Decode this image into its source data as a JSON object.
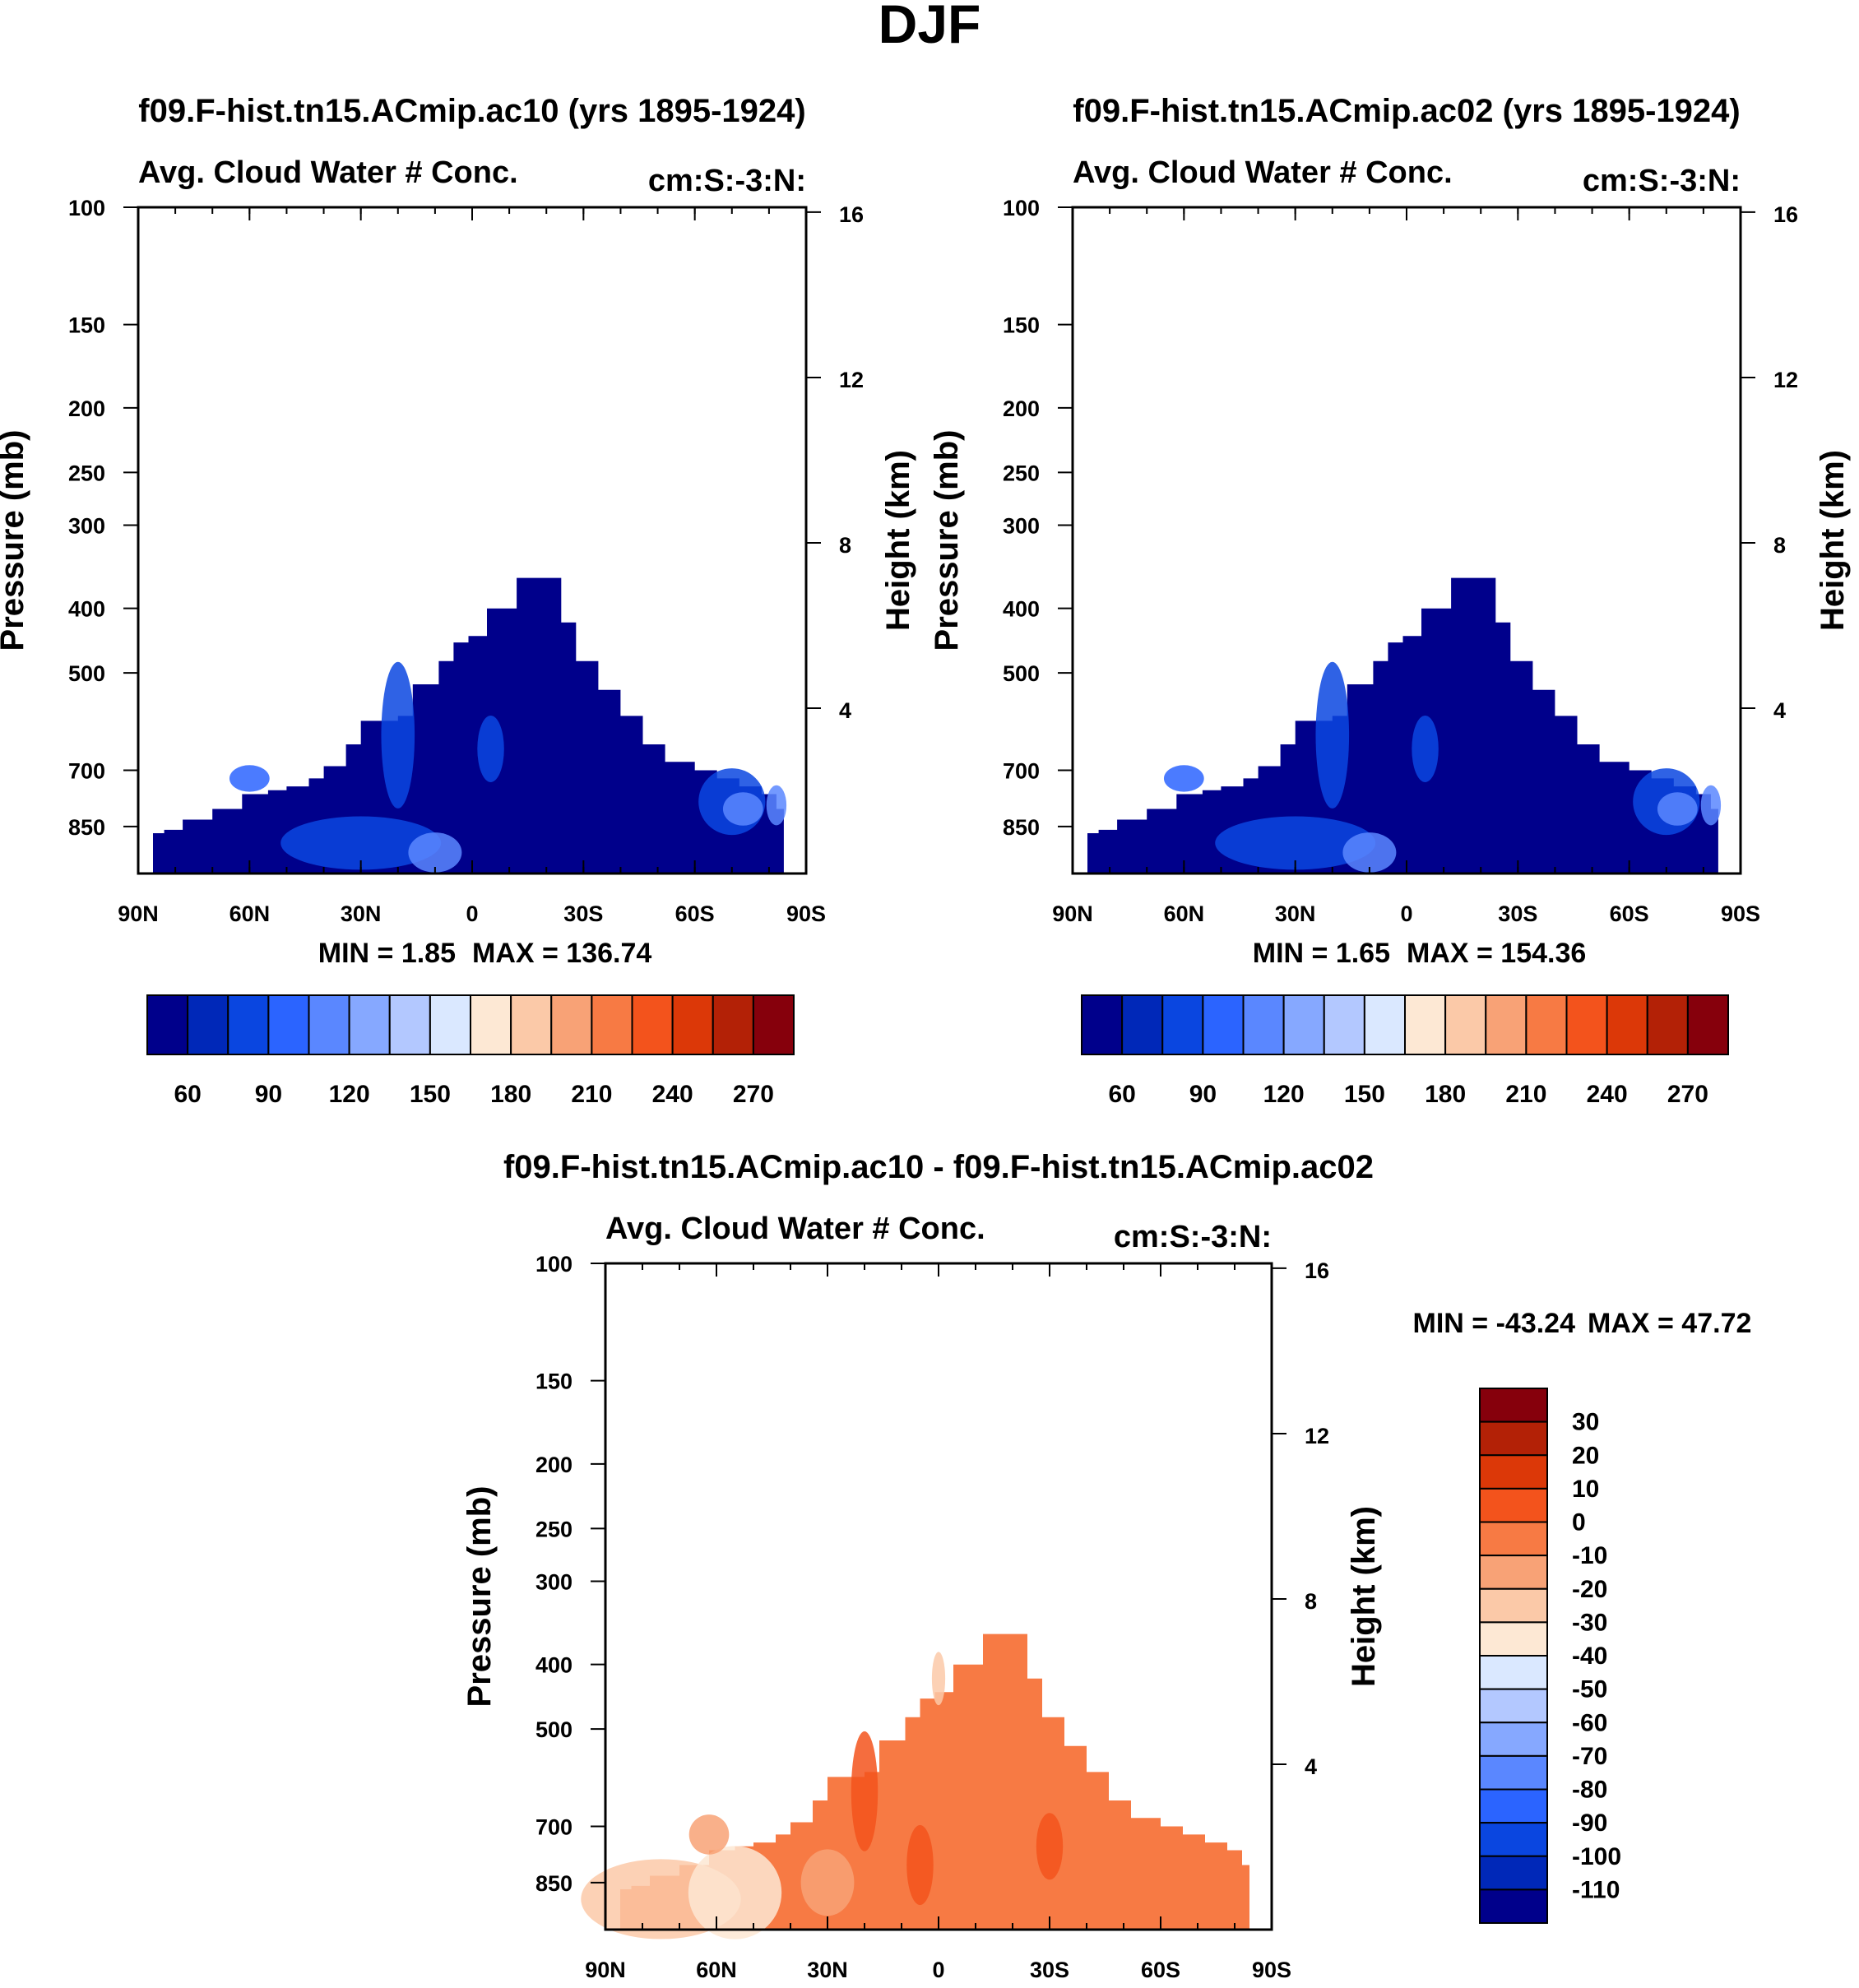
{
  "page": {
    "title": "DJF"
  },
  "chart_data": [
    {
      "type": "heatmap",
      "title": "f09.F-hist.tn15.ACmip.ac10 (yrs 1895-1924)",
      "subtitle_left": "Avg. Cloud Water # Conc.",
      "subtitle_right": "cm:S:-3:N:",
      "xlabel": "",
      "ylabel": "Pressure (mb)",
      "ylabel_right": "Height (km)",
      "x_ticks": [
        "90N",
        "60N",
        "30N",
        "0",
        "30S",
        "60S",
        "90S"
      ],
      "xlim": [
        90,
        -90
      ],
      "y_ticks": [
        100,
        150,
        200,
        250,
        300,
        400,
        500,
        700,
        850
      ],
      "ylim": [
        100,
        1000
      ],
      "y_right_ticks": [
        4,
        8,
        12,
        16
      ],
      "min_text": "MIN =   1.85",
      "max_text": "MAX = 136.74",
      "colorbar_labels": [
        "60",
        "90",
        "120",
        "150",
        "180",
        "210",
        "240",
        "270"
      ],
      "colorbar_colors": [
        "#00008b",
        "#0028b8",
        "#0a46e0",
        "#2b64ff",
        "#5a87ff",
        "#86a8ff",
        "#b3c8ff",
        "#dae8ff",
        "#fde8d4",
        "#fbc9a8",
        "#f8a276",
        "#f77a44",
        "#f3531c",
        "#dc3808",
        "#b32106",
        "#86000c"
      ],
      "field_range": "approx 1.85–136.74, mostly deep blue with lighter blue patches near surface and midlatitudes"
    },
    {
      "type": "heatmap",
      "title": "f09.F-hist.tn15.ACmip.ac02 (yrs 1895-1924)",
      "subtitle_left": "Avg. Cloud Water # Conc.",
      "subtitle_right": "cm:S:-3:N:",
      "xlabel": "",
      "ylabel": "Pressure (mb)",
      "ylabel_right": "Height (km)",
      "x_ticks": [
        "90N",
        "60N",
        "30N",
        "0",
        "30S",
        "60S",
        "90S"
      ],
      "xlim": [
        90,
        -90
      ],
      "y_ticks": [
        100,
        150,
        200,
        250,
        300,
        400,
        500,
        700,
        850
      ],
      "ylim": [
        100,
        1000
      ],
      "y_right_ticks": [
        4,
        8,
        12,
        16
      ],
      "min_text": "MIN =   1.65",
      "max_text": "MAX = 154.36",
      "colorbar_labels": [
        "60",
        "90",
        "120",
        "150",
        "180",
        "210",
        "240",
        "270"
      ],
      "colorbar_colors": [
        "#00008b",
        "#0028b8",
        "#0a46e0",
        "#2b64ff",
        "#5a87ff",
        "#86a8ff",
        "#b3c8ff",
        "#dae8ff",
        "#fde8d4",
        "#fbc9a8",
        "#f8a276",
        "#f77a44",
        "#f3531c",
        "#dc3808",
        "#b32106",
        "#86000c"
      ],
      "field_range": "approx 1.65–154.36, mostly deep blue with lighter blue patches near surface in NH"
    },
    {
      "type": "heatmap",
      "title": "f09.F-hist.tn15.ACmip.ac10 - f09.F-hist.tn15.ACmip.ac02",
      "subtitle_left": "Avg. Cloud Water # Conc.",
      "subtitle_right": "cm:S:-3:N:",
      "xlabel": "",
      "ylabel": "Pressure (mb)",
      "ylabel_right": "Height (km)",
      "x_ticks": [
        "90N",
        "60N",
        "30N",
        "0",
        "30S",
        "60S",
        "90S"
      ],
      "xlim": [
        90,
        -90
      ],
      "y_ticks": [
        100,
        150,
        200,
        250,
        300,
        400,
        500,
        700,
        850
      ],
      "ylim": [
        100,
        1000
      ],
      "y_right_ticks": [
        4,
        8,
        12,
        16
      ],
      "min_text": "MIN = -43.24",
      "max_text": "MAX =  47.72",
      "colorbar_labels": [
        "30",
        "20",
        "10",
        "0",
        "-10",
        "-20",
        "-30",
        "-40",
        "-50",
        "-60",
        "-70",
        "-80",
        "-90",
        "-100",
        "-110"
      ],
      "colorbar_colors": [
        "#86000c",
        "#b32106",
        "#dc3808",
        "#f3531c",
        "#f77a44",
        "#f8a276",
        "#fbc9a8",
        "#fde8d4",
        "#dae8ff",
        "#b3c8ff",
        "#86a8ff",
        "#5a87ff",
        "#2b64ff",
        "#0a46e0",
        "#0028b8",
        "#00008b"
      ],
      "field_range": "approx -43.24–47.72, mostly orange (-10 to 0) with lighter peach in NH midlatitudes"
    }
  ]
}
